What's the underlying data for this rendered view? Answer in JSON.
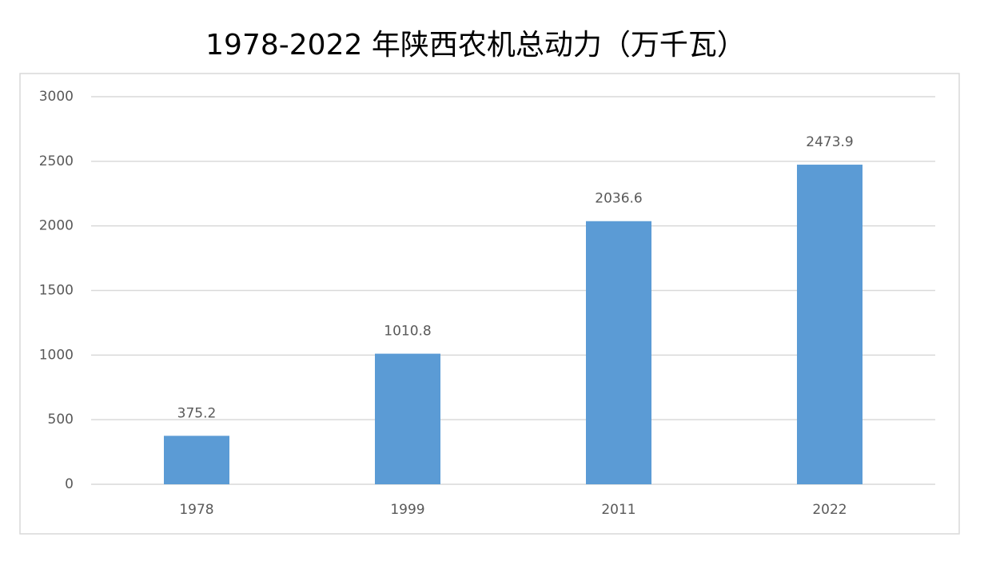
{
  "chart_data": {
    "type": "bar",
    "title": "1978-2022 年陕西农机总动力（万千瓦）",
    "categories": [
      "1978",
      "1999",
      "2011",
      "2022"
    ],
    "values": [
      375.2,
      1010.8,
      2036.6,
      2473.9
    ],
    "color": "#5b9bd5",
    "ylim": [
      0,
      3000
    ],
    "yticks": [
      0,
      500,
      1000,
      1500,
      2000,
      2500,
      3000
    ],
    "grid": true
  }
}
